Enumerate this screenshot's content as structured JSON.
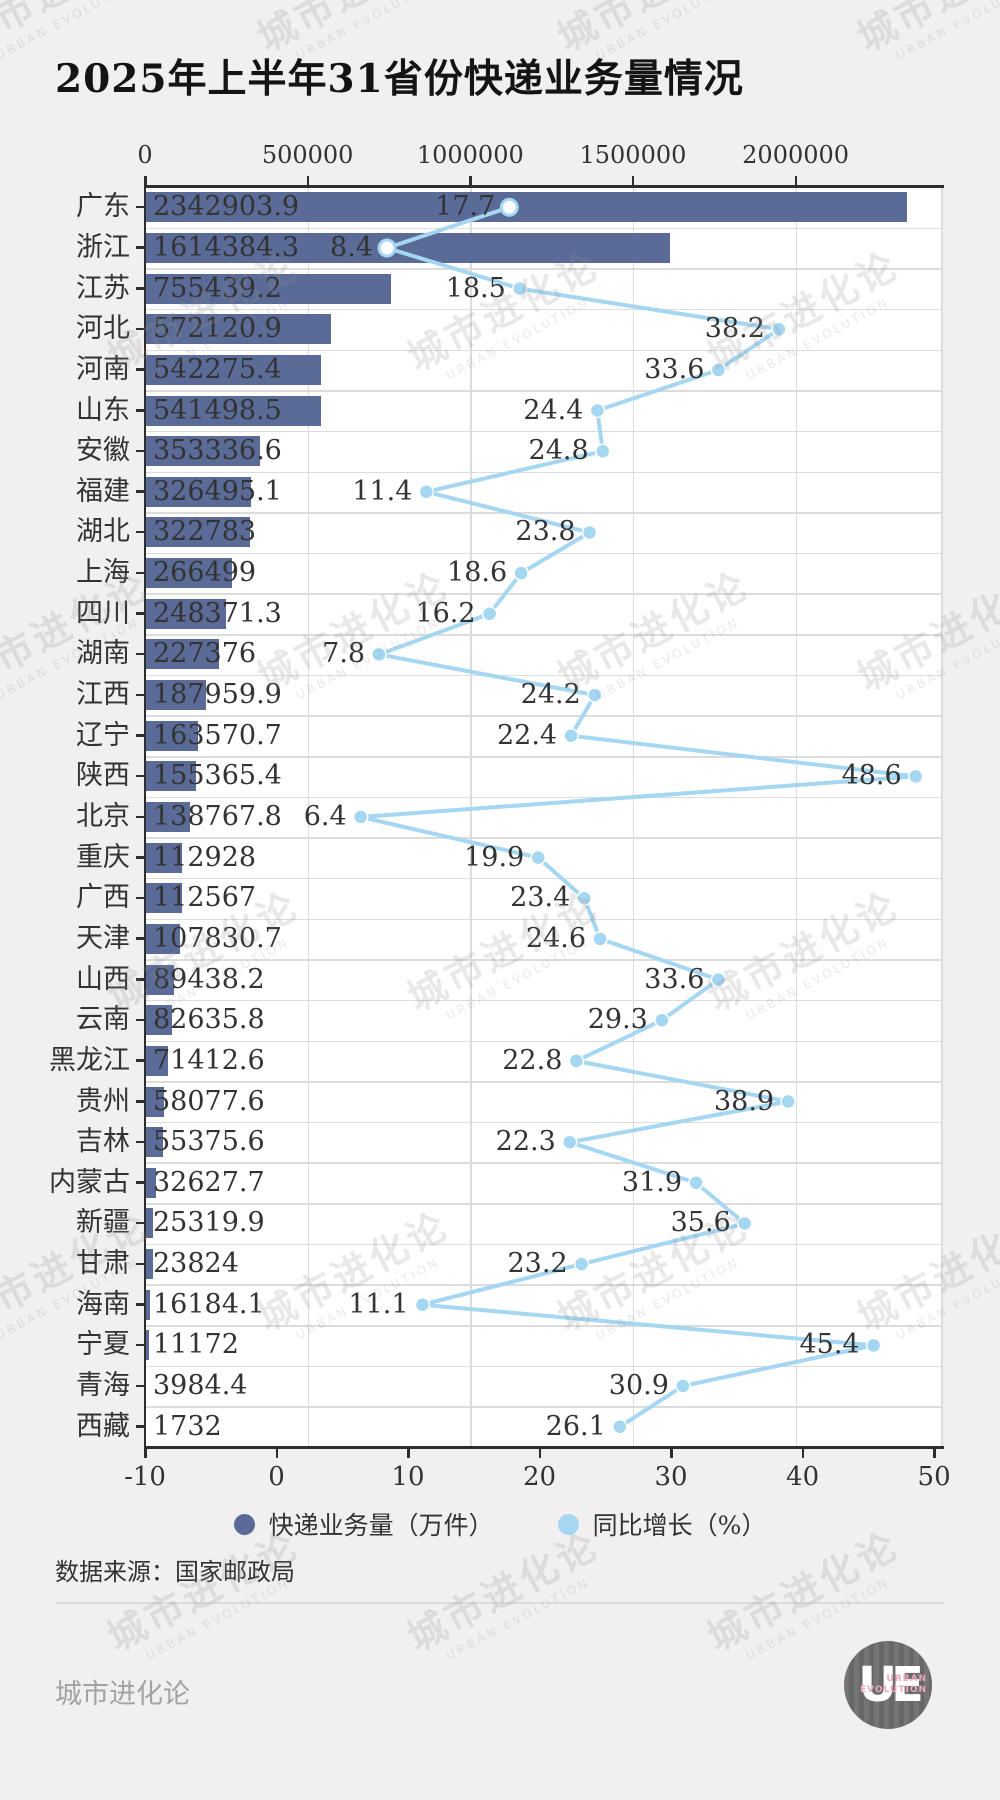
{
  "title": "2025年上半年31省份快递业务量情况",
  "source": "数据来源：国家邮政局",
  "watermark": {
    "cn": "城市进化论",
    "en": "URBAN EVOLUTION"
  },
  "footer": {
    "brand": "城市进化论",
    "logo": {
      "letters": "UE",
      "line1": "URBAN",
      "line2": "EVOLUTION"
    }
  },
  "colors": {
    "page_bg": "#f1eff0",
    "plot_bg": "#ffffff",
    "grid": "#dcdcdc",
    "axis": "#2e2e2e",
    "text": "#333333",
    "bar": "#5a6b98",
    "line": "#a5d6f2",
    "marker_on_bar_fill": "#fdfeff"
  },
  "legend": [
    {
      "label": "快递业务量（万件）",
      "color": "#5a6b98"
    },
    {
      "label": "同比增长（%）",
      "color": "#a5d6f2"
    }
  ],
  "top_axis": {
    "tick_labels": [
      "0",
      "500000",
      "1000000",
      "1500000",
      "2000000"
    ],
    "tick_values": [
      0,
      500000,
      1000000,
      1500000,
      2000000
    ],
    "min": 0,
    "max": 2450000
  },
  "bottom_axis": {
    "tick_labels": [
      "-10",
      "0",
      "10",
      "20",
      "30",
      "40",
      "50"
    ],
    "tick_values": [
      -10,
      0,
      10,
      20,
      30,
      40,
      50
    ],
    "min": -10,
    "max": 50.6
  },
  "chart_data": {
    "type": "bar",
    "orientation": "horizontal",
    "title": "2025年上半年31省份快递业务量情况",
    "xlabel": "",
    "ylabel": "",
    "grid": true,
    "legend_position": "bottom",
    "categories": [
      "广东",
      "浙江",
      "江苏",
      "河北",
      "河南",
      "山东",
      "安徽",
      "福建",
      "湖北",
      "上海",
      "四川",
      "湖南",
      "江西",
      "辽宁",
      "陕西",
      "北京",
      "重庆",
      "广西",
      "天津",
      "山西",
      "云南",
      "黑龙江",
      "贵州",
      "吉林",
      "内蒙古",
      "新疆",
      "甘肃",
      "海南",
      "宁夏",
      "青海",
      "西藏"
    ],
    "series": [
      {
        "name": "快递业务量（万件）",
        "axis": "top",
        "values": [
          2342903.9,
          1614384.3,
          755439.2,
          572120.9,
          542275.4,
          541498.5,
          353336.6,
          326495.1,
          322783,
          266499,
          248371.3,
          227376,
          187959.9,
          163570.7,
          155365.4,
          138767.8,
          112928,
          112567,
          107830.7,
          89438.2,
          82635.8,
          71412.6,
          58077.6,
          55375.6,
          32627.7,
          25319.9,
          23824,
          16184.1,
          11172,
          3984.4,
          1732
        ],
        "labels": [
          "2342903.9",
          "1614384.3",
          "755439.2",
          "572120.9",
          "542275.4",
          "541498.5",
          "353336.6",
          "326495.1",
          "322783",
          "266499",
          "248371.3",
          "227376",
          "187959.9",
          "163570.7",
          "155365.4",
          "138767.8",
          "112928",
          "112567",
          "107830.7",
          "89438.2",
          "82635.8",
          "71412.6",
          "58077.6",
          "55375.6",
          "32627.7",
          "25319.9",
          "23824",
          "16184.1",
          "11172",
          "3984.4",
          "1732"
        ]
      },
      {
        "name": "同比增长（%）",
        "axis": "bottom",
        "values": [
          17.7,
          8.4,
          18.5,
          38.2,
          33.6,
          24.4,
          24.8,
          11.4,
          23.8,
          18.6,
          16.2,
          7.8,
          24.2,
          22.4,
          48.6,
          6.4,
          19.9,
          23.4,
          24.6,
          33.6,
          29.3,
          22.8,
          38.9,
          22.3,
          31.9,
          35.6,
          23.2,
          11.1,
          45.4,
          30.9,
          26.1
        ],
        "labels": [
          "17.7",
          "8.4",
          "18.5",
          "38.2",
          "33.6",
          "24.4",
          "24.8",
          "11.4",
          "23.8",
          "18.6",
          "16.2",
          "7.8",
          "24.2",
          "22.4",
          "48.6",
          "6.4",
          "19.9",
          "23.4",
          "24.6",
          "33.6",
          "29.3",
          "22.8",
          "38.9",
          "22.3",
          "31.9",
          "35.6",
          "23.2",
          "11.1",
          "45.4",
          "30.9",
          "26.1"
        ]
      }
    ]
  }
}
